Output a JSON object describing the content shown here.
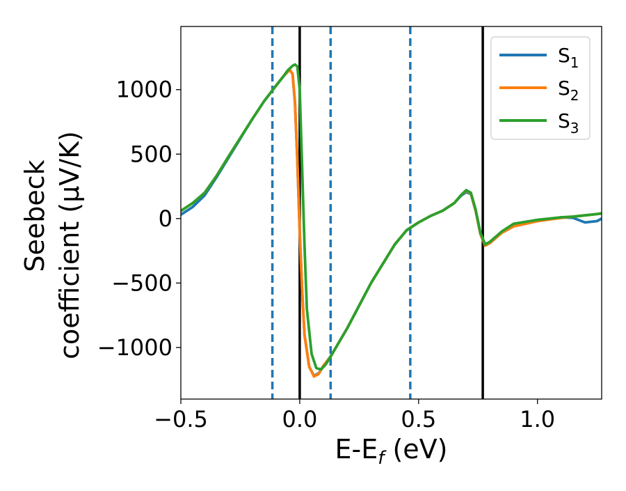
{
  "chart_data": {
    "type": "line",
    "xlabel": "E-E",
    "xlabel_sub": "f",
    "xlabel_unit": " (eV)",
    "ylabel_line1": "Seebeck",
    "ylabel_line2": "coefficient  (μV/K)",
    "xlim": [
      -0.5,
      1.27
    ],
    "ylim": [
      -1400,
      1490
    ],
    "xticks": [
      {
        "value": -0.5,
        "label": "−0.5"
      },
      {
        "value": 0.0,
        "label": "0.0"
      },
      {
        "value": 0.5,
        "label": "0.5"
      },
      {
        "value": 1.0,
        "label": "1.0"
      }
    ],
    "yticks": [
      {
        "value": 1000,
        "label": "1000"
      },
      {
        "value": 500,
        "label": "500"
      },
      {
        "value": 0,
        "label": "0"
      },
      {
        "value": -500,
        "label": "−500"
      },
      {
        "value": -1000,
        "label": "−1000"
      }
    ],
    "grid": false,
    "legend_position": "top-right",
    "vlines": [
      {
        "x": -0.115,
        "style": "dashed",
        "color": "#1f77b4"
      },
      {
        "x": 0.0,
        "style": "solid",
        "color": "#000000"
      },
      {
        "x": 0.13,
        "style": "dashed",
        "color": "#1f77b4"
      },
      {
        "x": 0.465,
        "style": "dashed",
        "color": "#1f77b4"
      },
      {
        "x": 0.77,
        "style": "solid",
        "color": "#000000"
      }
    ],
    "series": [
      {
        "name": "S",
        "name_sub": "1",
        "color": "#1f77b4",
        "points": [
          [
            -0.5,
            30
          ],
          [
            -0.45,
            90
          ],
          [
            -0.4,
            180
          ],
          [
            -0.35,
            320
          ],
          [
            -0.3,
            470
          ],
          [
            -0.25,
            620
          ],
          [
            -0.2,
            770
          ],
          [
            -0.15,
            910
          ],
          [
            -0.1,
            1030
          ],
          [
            -0.07,
            1100
          ],
          [
            -0.05,
            1140
          ],
          [
            -0.04,
            1150
          ],
          [
            -0.03,
            1120
          ],
          [
            -0.02,
            900
          ],
          [
            -0.01,
            450
          ],
          [
            0.0,
            -100
          ],
          [
            0.01,
            -550
          ],
          [
            0.02,
            -900
          ],
          [
            0.04,
            -1150
          ],
          [
            0.06,
            -1220
          ],
          [
            0.08,
            -1200
          ],
          [
            0.1,
            -1140
          ],
          [
            0.13,
            -1070
          ],
          [
            0.2,
            -850
          ],
          [
            0.3,
            -500
          ],
          [
            0.4,
            -200
          ],
          [
            0.45,
            -90
          ],
          [
            0.5,
            -30
          ],
          [
            0.55,
            20
          ],
          [
            0.6,
            60
          ],
          [
            0.65,
            120
          ],
          [
            0.68,
            180
          ],
          [
            0.7,
            205
          ],
          [
            0.72,
            190
          ],
          [
            0.74,
            60
          ],
          [
            0.76,
            -120
          ],
          [
            0.78,
            -210
          ],
          [
            0.8,
            -190
          ],
          [
            0.85,
            -110
          ],
          [
            0.9,
            -60
          ],
          [
            1.0,
            -20
          ],
          [
            1.1,
            10
          ],
          [
            1.15,
            5
          ],
          [
            1.2,
            -30
          ],
          [
            1.25,
            -20
          ],
          [
            1.27,
            0
          ]
        ]
      },
      {
        "name": "S",
        "name_sub": "2",
        "color": "#ff7f0e",
        "points": [
          [
            -0.5,
            60
          ],
          [
            -0.45,
            120
          ],
          [
            -0.4,
            200
          ],
          [
            -0.35,
            330
          ],
          [
            -0.3,
            480
          ],
          [
            -0.25,
            625
          ],
          [
            -0.2,
            770
          ],
          [
            -0.15,
            910
          ],
          [
            -0.1,
            1030
          ],
          [
            -0.07,
            1100
          ],
          [
            -0.05,
            1140
          ],
          [
            -0.04,
            1150
          ],
          [
            -0.03,
            1120
          ],
          [
            -0.02,
            900
          ],
          [
            -0.01,
            450
          ],
          [
            0.0,
            -100
          ],
          [
            0.01,
            -550
          ],
          [
            0.02,
            -900
          ],
          [
            0.04,
            -1150
          ],
          [
            0.06,
            -1225
          ],
          [
            0.08,
            -1205
          ],
          [
            0.1,
            -1140
          ],
          [
            0.13,
            -1070
          ],
          [
            0.2,
            -850
          ],
          [
            0.3,
            -500
          ],
          [
            0.4,
            -200
          ],
          [
            0.45,
            -90
          ],
          [
            0.5,
            -30
          ],
          [
            0.55,
            20
          ],
          [
            0.6,
            60
          ],
          [
            0.65,
            120
          ],
          [
            0.68,
            185
          ],
          [
            0.7,
            215
          ],
          [
            0.72,
            195
          ],
          [
            0.74,
            60
          ],
          [
            0.76,
            -120
          ],
          [
            0.78,
            -210
          ],
          [
            0.8,
            -190
          ],
          [
            0.85,
            -110
          ],
          [
            0.9,
            -60
          ],
          [
            1.0,
            -20
          ],
          [
            1.1,
            5
          ],
          [
            1.15,
            15
          ],
          [
            1.2,
            25
          ],
          [
            1.25,
            35
          ],
          [
            1.27,
            40
          ]
        ]
      },
      {
        "name": "S",
        "name_sub": "3",
        "color": "#2ca02c",
        "points": [
          [
            -0.5,
            60
          ],
          [
            -0.45,
            120
          ],
          [
            -0.4,
            200
          ],
          [
            -0.35,
            330
          ],
          [
            -0.3,
            480
          ],
          [
            -0.25,
            625
          ],
          [
            -0.2,
            770
          ],
          [
            -0.15,
            910
          ],
          [
            -0.1,
            1030
          ],
          [
            -0.07,
            1100
          ],
          [
            -0.05,
            1150
          ],
          [
            -0.03,
            1185
          ],
          [
            -0.02,
            1195
          ],
          [
            -0.01,
            1180
          ],
          [
            0.0,
            1000
          ],
          [
            0.01,
            400
          ],
          [
            0.02,
            -200
          ],
          [
            0.03,
            -700
          ],
          [
            0.05,
            -1050
          ],
          [
            0.07,
            -1160
          ],
          [
            0.09,
            -1170
          ],
          [
            0.11,
            -1130
          ],
          [
            0.13,
            -1070
          ],
          [
            0.2,
            -850
          ],
          [
            0.3,
            -500
          ],
          [
            0.4,
            -200
          ],
          [
            0.45,
            -90
          ],
          [
            0.5,
            -30
          ],
          [
            0.55,
            20
          ],
          [
            0.6,
            60
          ],
          [
            0.65,
            120
          ],
          [
            0.68,
            185
          ],
          [
            0.7,
            220
          ],
          [
            0.72,
            200
          ],
          [
            0.74,
            70
          ],
          [
            0.76,
            -110
          ],
          [
            0.78,
            -200
          ],
          [
            0.8,
            -180
          ],
          [
            0.85,
            -100
          ],
          [
            0.9,
            -40
          ],
          [
            1.0,
            -10
          ],
          [
            1.1,
            10
          ],
          [
            1.15,
            15
          ],
          [
            1.2,
            25
          ],
          [
            1.25,
            35
          ],
          [
            1.27,
            40
          ]
        ]
      }
    ]
  }
}
